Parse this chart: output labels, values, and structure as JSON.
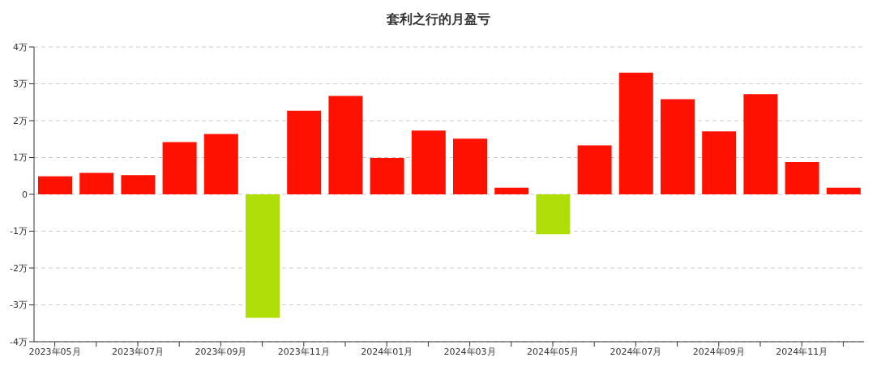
{
  "chart_data": {
    "type": "bar",
    "title": "套利之行的月盈亏",
    "categories": [
      "2023年05月",
      null,
      "2023年07月",
      null,
      "2023年09月",
      null,
      "2023年11月",
      null,
      "2024年01月",
      null,
      "2024年03月",
      null,
      "2024年05月",
      null,
      "2024年07月",
      null,
      "2024年09月",
      null,
      "2024年11月",
      null
    ],
    "values": [
      0.49,
      0.58,
      0.52,
      1.42,
      1.64,
      -3.35,
      2.27,
      2.67,
      0.99,
      1.73,
      1.51,
      0.18,
      -1.08,
      1.33,
      3.3,
      2.58,
      1.71,
      2.72,
      0.88,
      0.18
    ],
    "colors": [
      "#ff1100",
      "#ff1100",
      "#ff1100",
      "#ff1100",
      "#ff1100",
      "#b0de09",
      "#ff1100",
      "#ff1100",
      "#ff1100",
      "#ff1100",
      "#ff1100",
      "#ff1100",
      "#b0de09",
      "#ff1100",
      "#ff1100",
      "#ff1100",
      "#ff1100",
      "#ff1100",
      "#ff1100",
      "#ff1100"
    ],
    "ylim": [
      -4,
      4
    ],
    "yticks": [
      {
        "value": -4,
        "label": "-4万"
      },
      {
        "value": -3,
        "label": "-3万"
      },
      {
        "value": -2,
        "label": "-2万"
      },
      {
        "value": -1,
        "label": "-1万"
      },
      0,
      {
        "value": 1,
        "label": "1万"
      },
      {
        "value": 2,
        "label": "2万"
      },
      {
        "value": 3,
        "label": "3万"
      },
      {
        "value": 4,
        "label": "4万"
      }
    ],
    "grid": "y"
  }
}
